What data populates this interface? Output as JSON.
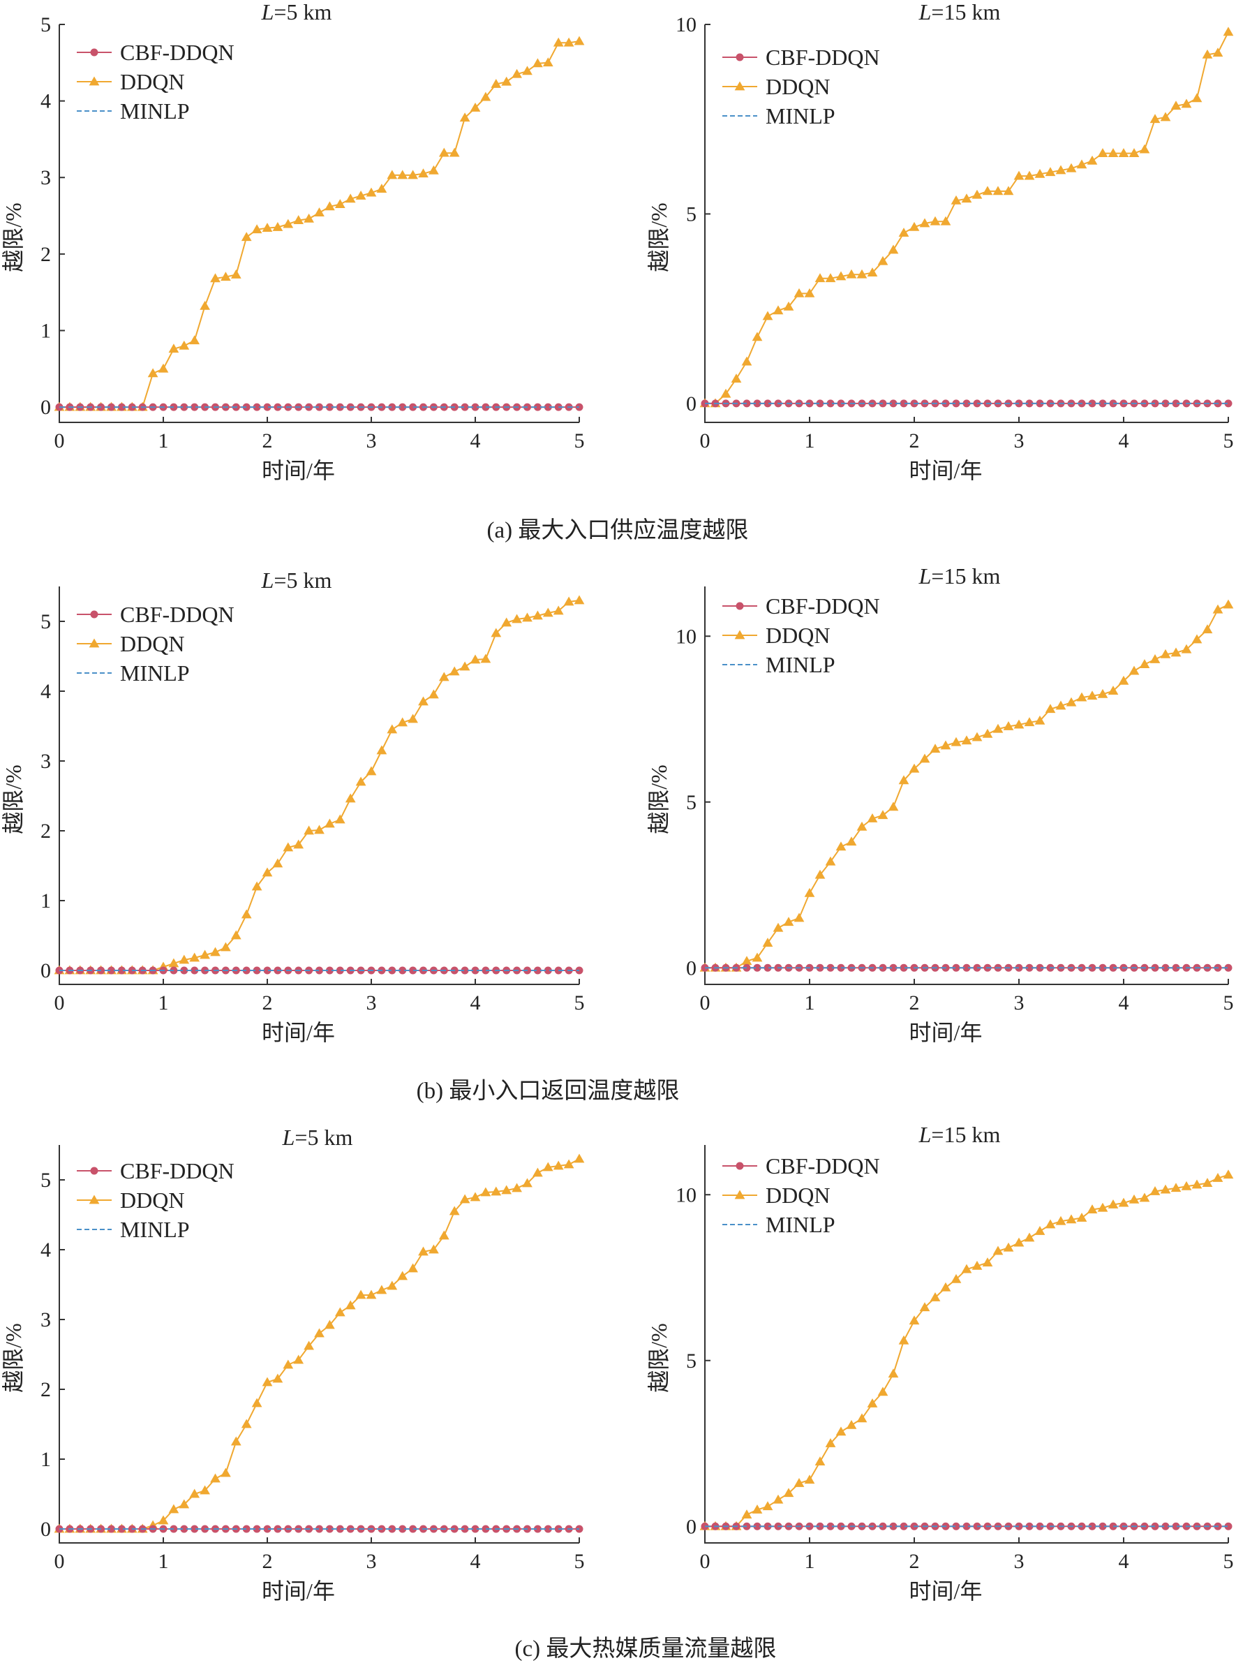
{
  "colors": {
    "cbf": "#c8526a",
    "ddqn": "#f0a830",
    "minlp": "#4a90c8"
  },
  "legend": [
    {
      "key": "cbf",
      "label": "CBF-DDQN",
      "marker": "circle",
      "line": "solid"
    },
    {
      "key": "ddqn",
      "label": "DDQN",
      "marker": "triangle",
      "line": "solid"
    },
    {
      "key": "minlp",
      "label": "MINLP",
      "marker": "none",
      "line": "dashed"
    }
  ],
  "captions": [
    "(a) 最大入口供应温度越限",
    "(b) 最小入口返回温度越限",
    "(c) 最大热媒质量流量越限"
  ],
  "chart_data": [
    {
      "type": "line",
      "title_italic": "L",
      "title_rest": "=5 km",
      "xlabel": "时间/年",
      "ylabel": "越限/%",
      "xlim": [
        0,
        5
      ],
      "ylim": [
        -0.2,
        5
      ],
      "xticks": [
        0,
        1,
        2,
        3,
        4,
        5
      ],
      "yticks": [
        0,
        1,
        2,
        3,
        4,
        5
      ],
      "x_step": 0.1,
      "series": [
        {
          "key": "ddqn",
          "values": [
            0,
            0,
            0,
            0,
            0,
            0,
            0,
            0,
            0,
            0.44,
            0.5,
            0.76,
            0.8,
            0.87,
            1.32,
            1.68,
            1.7,
            1.73,
            2.22,
            2.32,
            2.34,
            2.35,
            2.39,
            2.44,
            2.46,
            2.54,
            2.62,
            2.65,
            2.72,
            2.76,
            2.8,
            2.85,
            3.03,
            3.03,
            3.03,
            3.05,
            3.09,
            3.32,
            3.32,
            3.78,
            3.91,
            4.05,
            4.22,
            4.25,
            4.35,
            4.39,
            4.49,
            4.5,
            4.76,
            4.76,
            4.78
          ]
        },
        {
          "key": "cbf",
          "constant": 0
        },
        {
          "key": "minlp",
          "constant": 0
        }
      ]
    },
    {
      "type": "line",
      "title_italic": "L",
      "title_rest": "=15 km",
      "xlabel": "时间/年",
      "ylabel": "越限/%",
      "xlim": [
        0,
        5
      ],
      "ylim": [
        -0.5,
        10
      ],
      "xticks": [
        0,
        1,
        2,
        3,
        4,
        5
      ],
      "yticks": [
        0,
        5,
        10
      ],
      "x_step": 0.1,
      "series": [
        {
          "key": "ddqn",
          "values": [
            0,
            0,
            0.25,
            0.65,
            1.1,
            1.75,
            2.3,
            2.45,
            2.55,
            2.9,
            2.9,
            3.3,
            3.3,
            3.35,
            3.4,
            3.4,
            3.45,
            3.75,
            4.05,
            4.5,
            4.65,
            4.75,
            4.8,
            4.8,
            5.35,
            5.4,
            5.5,
            5.6,
            5.6,
            5.6,
            6.0,
            6.0,
            6.05,
            6.1,
            6.15,
            6.2,
            6.3,
            6.4,
            6.6,
            6.6,
            6.6,
            6.6,
            6.7,
            7.5,
            7.55,
            7.85,
            7.9,
            8.05,
            9.2,
            9.25,
            9.8
          ]
        },
        {
          "key": "cbf",
          "constant": 0
        },
        {
          "key": "minlp",
          "constant": 0
        }
      ]
    },
    {
      "type": "line",
      "title_italic": "L",
      "title_rest": "=5 km",
      "xlabel": "时间/年",
      "ylabel": "越限/%",
      "xlim": [
        0,
        5
      ],
      "ylim": [
        -0.2,
        5.5
      ],
      "xticks": [
        0,
        1,
        2,
        3,
        4,
        5
      ],
      "yticks": [
        0,
        1,
        2,
        3,
        4,
        5
      ],
      "x_step": 0.1,
      "series": [
        {
          "key": "ddqn",
          "values": [
            0,
            0,
            0,
            0,
            0,
            0,
            0,
            0,
            0,
            0,
            0.05,
            0.1,
            0.15,
            0.18,
            0.22,
            0.26,
            0.33,
            0.5,
            0.8,
            1.2,
            1.4,
            1.53,
            1.76,
            1.8,
            2.0,
            2.01,
            2.1,
            2.16,
            2.46,
            2.7,
            2.85,
            3.15,
            3.45,
            3.55,
            3.6,
            3.85,
            3.95,
            4.2,
            4.28,
            4.35,
            4.45,
            4.46,
            4.83,
            4.98,
            5.03,
            5.05,
            5.08,
            5.12,
            5.15,
            5.28,
            5.3
          ]
        },
        {
          "key": "cbf",
          "constant": 0
        },
        {
          "key": "minlp",
          "constant": 0
        }
      ]
    },
    {
      "type": "line",
      "title_italic": "L",
      "title_rest": "=15 km",
      "xlabel": "时间/年",
      "ylabel": "越限/%",
      "xlim": [
        0,
        5
      ],
      "ylim": [
        -0.5,
        11.5
      ],
      "xticks": [
        0,
        1,
        2,
        3,
        4,
        5
      ],
      "yticks": [
        0,
        5,
        10
      ],
      "x_step": 0.1,
      "series": [
        {
          "key": "ddqn",
          "values": [
            0,
            0,
            0,
            0,
            0.2,
            0.3,
            0.75,
            1.2,
            1.38,
            1.5,
            2.25,
            2.8,
            3.2,
            3.65,
            3.8,
            4.25,
            4.5,
            4.6,
            4.85,
            5.65,
            6.0,
            6.3,
            6.6,
            6.7,
            6.8,
            6.85,
            6.95,
            7.05,
            7.2,
            7.28,
            7.33,
            7.4,
            7.45,
            7.8,
            7.9,
            8.0,
            8.15,
            8.2,
            8.25,
            8.35,
            8.65,
            8.95,
            9.15,
            9.3,
            9.45,
            9.5,
            9.6,
            9.9,
            10.2,
            10.8,
            10.95
          ]
        },
        {
          "key": "cbf",
          "constant": 0
        },
        {
          "key": "minlp",
          "constant": 0
        }
      ]
    },
    {
      "type": "line",
      "title_italic": "L",
      "title_rest": "=5 km",
      "xlabel": "时间/年",
      "ylabel": "越限/%",
      "xlim": [
        0,
        5
      ],
      "ylim": [
        -0.2,
        5.5
      ],
      "xticks": [
        0,
        1,
        2,
        3,
        4,
        5
      ],
      "yticks": [
        0,
        1,
        2,
        3,
        4,
        5
      ],
      "x_step": 0.1,
      "series": [
        {
          "key": "ddqn",
          "values": [
            0,
            0,
            0,
            0,
            0,
            0,
            0,
            0,
            0,
            0.05,
            0.12,
            0.28,
            0.35,
            0.5,
            0.55,
            0.72,
            0.8,
            1.25,
            1.5,
            1.8,
            2.1,
            2.15,
            2.35,
            2.42,
            2.62,
            2.8,
            2.92,
            3.1,
            3.2,
            3.35,
            3.35,
            3.42,
            3.48,
            3.62,
            3.73,
            3.97,
            4.0,
            4.2,
            4.55,
            4.72,
            4.75,
            4.82,
            4.83,
            4.85,
            4.88,
            4.95,
            5.1,
            5.18,
            5.2,
            5.22,
            5.3
          ]
        },
        {
          "key": "cbf",
          "constant": 0
        },
        {
          "key": "minlp",
          "constant": 0
        }
      ]
    },
    {
      "type": "line",
      "title_italic": "L",
      "title_rest": "=15 km",
      "xlabel": "时间/年",
      "ylabel": "越限/%",
      "xlim": [
        0,
        5
      ],
      "ylim": [
        -0.5,
        11.5
      ],
      "xticks": [
        0,
        1,
        2,
        3,
        4,
        5
      ],
      "yticks": [
        0,
        5,
        10
      ],
      "x_step": 0.1,
      "series": [
        {
          "key": "ddqn",
          "values": [
            0,
            0,
            0,
            0,
            0.35,
            0.5,
            0.6,
            0.8,
            1.0,
            1.3,
            1.4,
            1.95,
            2.5,
            2.85,
            3.05,
            3.25,
            3.7,
            4.05,
            4.6,
            5.6,
            6.2,
            6.6,
            6.9,
            7.2,
            7.45,
            7.75,
            7.85,
            7.95,
            8.3,
            8.4,
            8.55,
            8.7,
            8.9,
            9.1,
            9.2,
            9.25,
            9.3,
            9.55,
            9.6,
            9.7,
            9.75,
            9.85,
            9.9,
            10.1,
            10.15,
            10.2,
            10.25,
            10.3,
            10.35,
            10.5,
            10.6
          ]
        },
        {
          "key": "cbf",
          "constant": 0
        },
        {
          "key": "minlp",
          "constant": 0
        }
      ]
    }
  ]
}
